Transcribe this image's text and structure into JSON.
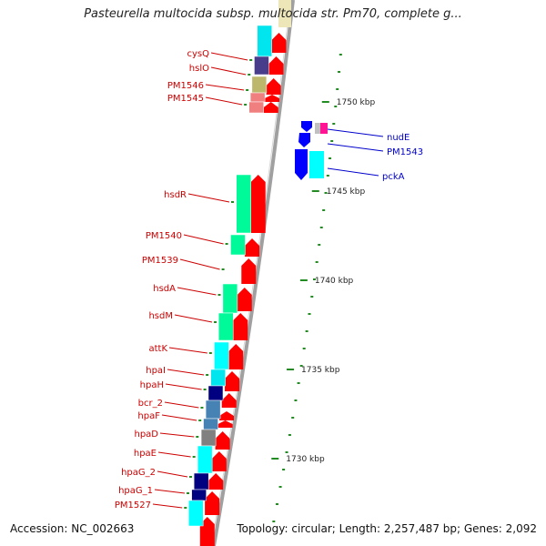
{
  "title": "Pasteurella multocida subsp. multocida str. Pm70, complete g...",
  "footer": {
    "accession": "Accession: NC_002663",
    "topology": "Topology: circular; Length: 2,257,487 bp; Genes: 2,092"
  },
  "colors": {
    "forward": "#ff0000",
    "label_left": "#cc0000",
    "label_right": "#0000cc",
    "backbone": "#a0a0a0",
    "tick": "#228b22",
    "kbp_text": "#222222"
  },
  "kbp_labels": [
    "1730 kbp",
    "1735 kbp",
    "1740 kbp",
    "1745 kbp",
    "1750 kbp"
  ],
  "left_genes": [
    {
      "name": "cysQ",
      "color": "#00e5ee"
    },
    {
      "name": "hslO",
      "color": "#483d8b"
    },
    {
      "name": "PM1546",
      "color": "#bdb76b"
    },
    {
      "name": "PM1545",
      "color": "#f08080"
    },
    {
      "name": "hsdR",
      "color": "#00fa9a"
    },
    {
      "name": "PM1540",
      "color": "#00fa9a"
    },
    {
      "name": "PM1539",
      "color": "#ff0000"
    },
    {
      "name": "hsdA",
      "color": "#00fa9a"
    },
    {
      "name": "hsdM",
      "color": "#00fa9a"
    },
    {
      "name": "attK",
      "color": "#00ffff"
    },
    {
      "name": "hpaI",
      "color": "#00e5ee"
    },
    {
      "name": "hpaH",
      "color": "#000080"
    },
    {
      "name": "bcr_2",
      "color": "#4682b4"
    },
    {
      "name": "hpaF",
      "color": "#4682b4"
    },
    {
      "name": "hpaD",
      "color": "#808080"
    },
    {
      "name": "hpaE",
      "color": "#00ffff"
    },
    {
      "name": "hpaG_2",
      "color": "#000080"
    },
    {
      "name": "hpaG_1",
      "color": "#000080"
    },
    {
      "name": "PM1527",
      "color": "#00ffff"
    }
  ],
  "right_genes": [
    {
      "name": "nudE",
      "color": "#ff1493"
    },
    {
      "name": "PM1543",
      "color": "#0000ff"
    },
    {
      "name": "pckA",
      "color": "#00ffff"
    }
  ]
}
